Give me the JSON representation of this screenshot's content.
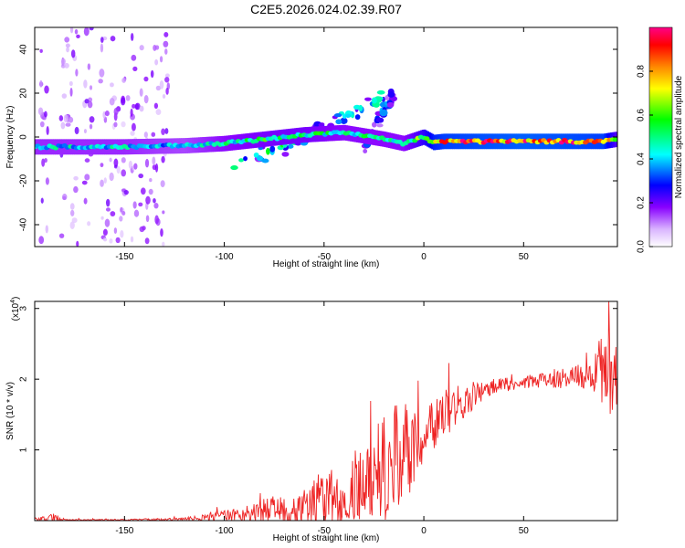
{
  "figure_title": "C2E5.2026.024.02.39.R07",
  "chart_data": [
    {
      "type": "heatmap",
      "title": "C2E5.2026.024.02.39.R07",
      "xlabel": "Height of straight line (km)",
      "ylabel": "Frequency (Hz)",
      "xlim": [
        -195,
        97
      ],
      "ylim": [
        -50,
        50
      ],
      "x_ticks": [
        -150,
        -100,
        -50,
        0,
        50
      ],
      "y_ticks": [
        -40,
        -20,
        0,
        20,
        40
      ],
      "colorbar": {
        "label": "Normalized spectral amplitude",
        "range": [
          0.0,
          1.0
        ],
        "ticks": [
          "0.0",
          "0.2",
          "0.4",
          "0.6",
          "0.8"
        ],
        "colors": [
          "#ffffff",
          "#d9b3ff",
          "#8800ff",
          "#0000ff",
          "#00ffff",
          "#00ff00",
          "#ffff00",
          "#ff8800",
          "#ff0000",
          "#ff0088"
        ]
      },
      "ridge_frequency": {
        "x": [
          -195,
          -150,
          -120,
          -100,
          -80,
          -60,
          -40,
          -20,
          -10,
          0,
          5,
          10,
          50,
          90,
          97
        ],
        "y": [
          -4.5,
          -4.5,
          -4,
          -3,
          -1,
          1,
          2,
          -1,
          -3,
          0,
          -2.5,
          -2,
          -2,
          -2,
          -1
        ],
        "amp": [
          0.45,
          0.45,
          0.4,
          0.5,
          0.55,
          0.55,
          0.5,
          0.5,
          0.5,
          0.7,
          0.85,
          0.9,
          0.95,
          0.9,
          0.6
        ]
      },
      "scatter_streaks": [
        {
          "x": [
            -95,
            -40
          ],
          "y": [
            -12,
            8
          ],
          "amp": 0.5
        },
        {
          "x": [
            -80,
            -20
          ],
          "y": [
            -10,
            18
          ],
          "amp": 0.45
        },
        {
          "x": [
            -30,
            -15
          ],
          "y": [
            -5,
            20
          ],
          "amp": 0.35
        }
      ],
      "noise_columns_x": [
        -190,
        -180,
        -175,
        -168,
        -160,
        -155,
        -150,
        -145,
        -140,
        -135,
        -130
      ]
    },
    {
      "type": "line",
      "xlabel": "Height of straight line (km)",
      "ylabel": "SNR (10 * v/v)",
      "y_scale_label": "(x10^4)",
      "y_exponent_base": "(x10",
      "y_exponent": "4",
      "y_exponent_close": ")",
      "xlim": [
        -195,
        97
      ],
      "ylim": [
        0,
        3.1
      ],
      "x_ticks": [
        -150,
        -100,
        -50,
        0,
        50
      ],
      "y_ticks": [
        1,
        2,
        3
      ],
      "series": [
        {
          "color": "#ee2222",
          "envelope": {
            "x": [
              -195,
              -185,
              -180,
              -150,
              -120,
              -100,
              -90,
              -80,
              -70,
              -60,
              -50,
              -40,
              -30,
              -20,
              -10,
              0,
              10,
              20,
              30,
              40,
              50,
              60,
              70,
              80,
              85,
              90,
              97
            ],
            "mid": [
              0.02,
              0.03,
              0.01,
              0.01,
              0.02,
              0.06,
              0.1,
              0.13,
              0.15,
              0.2,
              0.3,
              0.4,
              0.55,
              0.75,
              0.95,
              1.2,
              1.5,
              1.7,
              1.85,
              1.92,
              1.95,
              2.0,
              2.02,
              2.05,
              2.1,
              2.2,
              2.0
            ],
            "amp": [
              0.02,
              0.08,
              0.01,
              0.01,
              0.02,
              0.08,
              0.12,
              0.18,
              0.2,
              0.25,
              0.35,
              0.45,
              0.55,
              0.75,
              0.8,
              0.35,
              0.35,
              0.25,
              0.15,
              0.1,
              0.08,
              0.12,
              0.15,
              0.2,
              0.3,
              0.6,
              0.6
            ]
          }
        }
      ]
    }
  ]
}
